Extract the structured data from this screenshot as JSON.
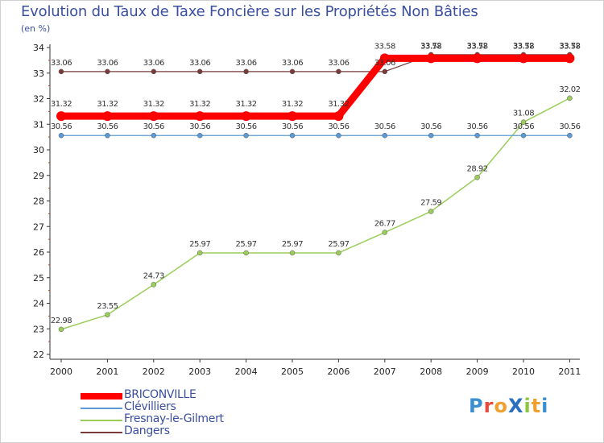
{
  "title": "Evolution du Taux de Taxe Foncière sur les Propriétés Non Bâties",
  "subtitle": "(en %)",
  "logo": "ProXiti",
  "colors": {
    "BRICONVILLE": "#ff0000",
    "Clévilliers": "#5b9bd5",
    "Fresnay-le-Gilmert": "#9acd5a",
    "Dangers": "#7a3a3a"
  },
  "chart_data": {
    "type": "line",
    "title": "Evolution du Taux de Taxe Foncière sur les Propriétés Non Bâties",
    "ylabel": "(en %)",
    "xlabel": "",
    "x": [
      "2000",
      "2001",
      "2002",
      "2003",
      "2004",
      "2005",
      "2006",
      "2007",
      "2008",
      "2009",
      "2010",
      "2011"
    ],
    "ylim": [
      22,
      34
    ],
    "yticks": [
      "22",
      "23",
      "24",
      "25",
      "26",
      "27",
      "28",
      "29",
      "30",
      "31",
      "32",
      "33",
      "34"
    ],
    "grid": false,
    "legend_position": "bottom-left",
    "series": [
      {
        "name": "BRICONVILLE",
        "values": [
          31.32,
          31.32,
          31.32,
          31.32,
          31.32,
          31.32,
          31.32,
          33.58,
          33.58,
          33.58,
          33.58,
          33.58
        ],
        "labels": [
          "31.32",
          "31.32",
          "31.32",
          "31.32",
          "31.32",
          "31.32",
          "31.32",
          "33.58",
          "33.58",
          "33.58",
          "33.58",
          "33.58"
        ]
      },
      {
        "name": "Clévilliers",
        "values": [
          30.56,
          30.56,
          30.56,
          30.56,
          30.56,
          30.56,
          30.56,
          30.56,
          30.56,
          30.56,
          30.56,
          30.56
        ],
        "labels": [
          "30.56",
          "30.56",
          "30.56",
          "30.56",
          "30.56",
          "30.56",
          "30.56",
          "30.56",
          "30.56",
          "30.56",
          "30.56",
          "30.56"
        ]
      },
      {
        "name": "Fresnay-le-Gilmert",
        "values": [
          22.98,
          23.55,
          24.73,
          25.97,
          25.97,
          25.97,
          25.97,
          26.77,
          27.59,
          28.92,
          31.08,
          32.02
        ],
        "labels": [
          "22.98",
          "23.55",
          "24.73",
          "25.97",
          "25.97",
          "25.97",
          "25.97",
          "26.77",
          "27.59",
          "28.92",
          "31.08",
          "32.02"
        ]
      },
      {
        "name": "Dangers",
        "values": [
          33.06,
          33.06,
          33.06,
          33.06,
          33.06,
          33.06,
          33.06,
          33.06,
          33.72,
          33.72,
          33.72,
          33.72
        ],
        "labels": [
          "33.06",
          "33.06",
          "33.06",
          "33.06",
          "33.06",
          "33.06",
          "33.06",
          "33.06",
          "33.72",
          "33.72",
          "33.72",
          "33.72"
        ]
      }
    ]
  }
}
